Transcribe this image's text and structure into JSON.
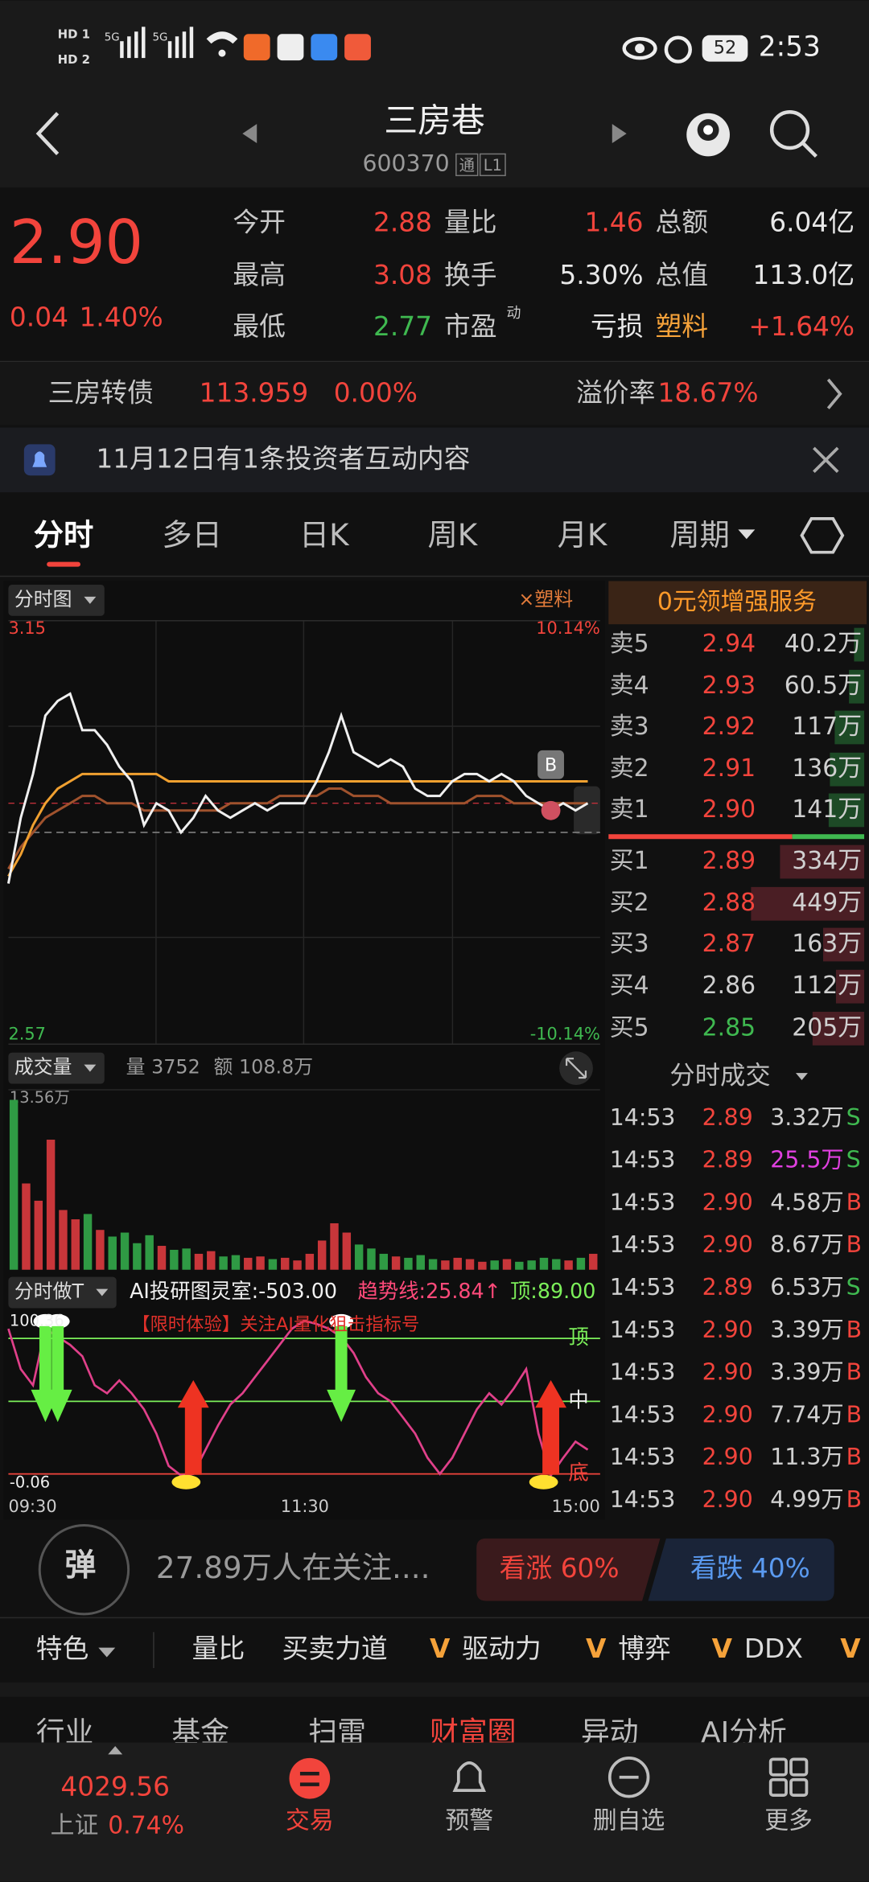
{
  "status_bar": {
    "network": [
      "HD 1",
      "HD 2",
      "5G",
      "5G"
    ],
    "battery": "52",
    "time": "2:53"
  },
  "header": {
    "title": "三房巷",
    "code": "600370",
    "badges": [
      "通",
      "L1"
    ]
  },
  "quote": {
    "price": "2.90",
    "change": "0.04",
    "change_pct": "1.40%",
    "rows": [
      [
        {
          "label": "今开",
          "value": "2.88",
          "color": "#f2443c"
        },
        {
          "label": "量比",
          "value": "1.46",
          "color": "#f2443c"
        },
        {
          "label": "总额",
          "value": "6.04亿",
          "color": "#e8e8e8"
        }
      ],
      [
        {
          "label": "最高",
          "value": "3.08",
          "color": "#f2443c"
        },
        {
          "label": "换手",
          "value": "5.30%",
          "color": "#e8e8e8"
        },
        {
          "label": "总值",
          "value": "113.0亿",
          "color": "#e8e8e8"
        }
      ],
      [
        {
          "label": "最低",
          "value": "2.77",
          "color": "#3fb950"
        },
        {
          "label": "市盈",
          "label_sup": "动",
          "value": "亏损",
          "color": "#e8e8e8"
        },
        {
          "label": "塑料",
          "label_color": "#f5a23a",
          "value": "+1.64%",
          "color": "#f2443c"
        }
      ]
    ]
  },
  "bond": {
    "name": "三房转债",
    "price": "113.959",
    "change": "0.00%",
    "premium_label": "溢价率",
    "premium": "18.67%"
  },
  "notice": {
    "text": "11月12日有1条投资者互动内容"
  },
  "tabs": {
    "items": [
      "分时",
      "多日",
      "日K",
      "周K",
      "月K",
      "周期"
    ],
    "active": 0
  },
  "intraday": {
    "title": "分时图",
    "compare": "×塑料",
    "ylim": [
      2.57,
      3.15
    ],
    "pct_top": "10.14%",
    "pct_bottom": "-10.14%",
    "prev_close": 2.86,
    "price_color": "#f0f0f0",
    "average_color": "#f0a030",
    "sector_color": "#a0522d",
    "trade_marker": {
      "label": "B",
      "index": 44
    },
    "price": [
      2.79,
      2.88,
      2.94,
      3.02,
      3.04,
      3.05,
      3.0,
      3.0,
      2.98,
      2.95,
      2.93,
      2.87,
      2.9,
      2.89,
      2.86,
      2.88,
      2.91,
      2.89,
      2.88,
      2.89,
      2.9,
      2.89,
      2.9,
      2.9,
      2.9,
      2.93,
      2.97,
      3.02,
      2.97,
      2.96,
      2.95,
      2.96,
      2.95,
      2.92,
      2.91,
      2.91,
      2.93,
      2.94,
      2.94,
      2.93,
      2.94,
      2.93,
      2.91,
      2.9,
      2.89,
      2.9,
      2.89,
      2.9
    ],
    "average": [
      2.8,
      2.83,
      2.87,
      2.9,
      2.92,
      2.93,
      2.94,
      2.94,
      2.94,
      2.94,
      2.94,
      2.94,
      2.94,
      2.93,
      2.93,
      2.93,
      2.93,
      2.93,
      2.93,
      2.93,
      2.93,
      2.93,
      2.93,
      2.93,
      2.93,
      2.93,
      2.93,
      2.93,
      2.93,
      2.93,
      2.93,
      2.93,
      2.93,
      2.93,
      2.93,
      2.93,
      2.93,
      2.93,
      2.93,
      2.93,
      2.93,
      2.93,
      2.93,
      2.93,
      2.93,
      2.93,
      2.93,
      2.93
    ],
    "sector": [
      2.81,
      2.84,
      2.86,
      2.88,
      2.89,
      2.9,
      2.91,
      2.91,
      2.9,
      2.9,
      2.9,
      2.89,
      2.89,
      2.89,
      2.89,
      2.89,
      2.89,
      2.89,
      2.9,
      2.9,
      2.9,
      2.9,
      2.91,
      2.91,
      2.91,
      2.91,
      2.92,
      2.92,
      2.91,
      2.91,
      2.91,
      2.9,
      2.9,
      2.9,
      2.9,
      2.9,
      2.9,
      2.9,
      2.91,
      2.91,
      2.91,
      2.9,
      2.9,
      2.9,
      2.9,
      2.9,
      2.9,
      2.9
    ]
  },
  "volume": {
    "title": "成交量",
    "volume": "量 3752",
    "amount": "额 108.8万",
    "ylim": [
      0,
      13.56
    ],
    "ytick": {
      "value": 13.56,
      "label": "13.56万"
    },
    "values": [
      12.8,
      6.5,
      5.2,
      9.8,
      4.5,
      3.8,
      4.2,
      3.0,
      2.5,
      2.8,
      2.0,
      2.6,
      1.8,
      1.5,
      1.6,
      1.2,
      1.4,
      1.0,
      1.1,
      0.9,
      1.0,
      0.8,
      0.9,
      0.7,
      1.2,
      2.2,
      3.5,
      2.8,
      1.9,
      1.6,
      1.2,
      1.0,
      0.9,
      1.1,
      0.8,
      0.7,
      0.9,
      0.8,
      0.6,
      0.7,
      0.8,
      0.6,
      0.7,
      0.9,
      0.8,
      0.7,
      0.9,
      1.2
    ]
  },
  "indicator": {
    "title": "分时做T",
    "ai": "AI投研图灵室:-503.00",
    "trend": "趋势线:25.84↑",
    "top": "顶:89.00",
    "promo": "【限时体验】关注AI量化狙击指标号",
    "ylim": [
      -0.06,
      100.36
    ],
    "levels": [
      {
        "label": "顶",
        "value": 89,
        "color": "#7cf05a"
      },
      {
        "label": "中",
        "value": 50,
        "color": "#7cf05a"
      },
      {
        "label": "底",
        "value": 5,
        "color": "#f2443c"
      }
    ],
    "values": [
      95,
      70,
      60,
      95,
      90,
      85,
      78,
      60,
      55,
      63,
      55,
      45,
      30,
      10,
      4,
      5,
      20,
      35,
      48,
      55,
      65,
      75,
      85,
      95,
      100,
      98,
      95,
      90,
      80,
      65,
      55,
      50,
      40,
      30,
      15,
      5,
      15,
      30,
      45,
      55,
      48,
      58,
      70,
      30,
      4,
      15,
      25,
      20
    ],
    "sell_signals": [
      3,
      4,
      27
    ],
    "buy_signals": [
      15,
      44
    ],
    "time_axis": [
      "09:30",
      "11:30",
      "15:00"
    ]
  },
  "order_book": {
    "promo": "0元领增强服务",
    "asks": [
      {
        "label": "卖5",
        "price": "2.94",
        "volume": 40.2,
        "volume_label": "40.2万"
      },
      {
        "label": "卖4",
        "price": "2.93",
        "volume": 60.5,
        "volume_label": "60.5万"
      },
      {
        "label": "卖3",
        "price": "2.92",
        "volume": 117,
        "volume_label": "117万"
      },
      {
        "label": "卖2",
        "price": "2.91",
        "volume": 136,
        "volume_label": "136万"
      },
      {
        "label": "卖1",
        "price": "2.90",
        "volume": 141,
        "volume_label": "141万"
      }
    ],
    "bids": [
      {
        "label": "买1",
        "price": "2.89",
        "volume": 334,
        "volume_label": "334万"
      },
      {
        "label": "买2",
        "price": "2.88",
        "volume": 449,
        "volume_label": "449万"
      },
      {
        "label": "买3",
        "price": "2.87",
        "volume": 163,
        "volume_label": "163万"
      },
      {
        "label": "买4",
        "price": "2.86",
        "volume": 112,
        "volume_label": "112万"
      },
      {
        "label": "买5",
        "price": "2.85",
        "volume": 205,
        "volume_label": "205万"
      }
    ]
  },
  "trades": {
    "title": "分时成交",
    "rows": [
      {
        "time": "14:53",
        "price": "2.89",
        "volume": "3.32万",
        "side": "S"
      },
      {
        "time": "14:53",
        "price": "2.89",
        "volume": "25.5万",
        "side": "S",
        "large": true
      },
      {
        "time": "14:53",
        "price": "2.90",
        "volume": "4.58万",
        "side": "B"
      },
      {
        "time": "14:53",
        "price": "2.90",
        "volume": "8.67万",
        "side": "B"
      },
      {
        "time": "14:53",
        "price": "2.89",
        "volume": "6.53万",
        "side": "S"
      },
      {
        "time": "14:53",
        "price": "2.90",
        "volume": "3.39万",
        "side": "B"
      },
      {
        "time": "14:53",
        "price": "2.90",
        "volume": "3.39万",
        "side": "B"
      },
      {
        "time": "14:53",
        "price": "2.90",
        "volume": "7.74万",
        "side": "B"
      },
      {
        "time": "14:53",
        "price": "2.90",
        "volume": "11.3万",
        "side": "B"
      },
      {
        "time": "14:53",
        "price": "2.90",
        "volume": "4.99万",
        "side": "B"
      }
    ]
  },
  "social": {
    "button": "弹",
    "followers": "27.89万人在关注....",
    "bullish": "看涨 60%",
    "bearish": "看跌 40%"
  },
  "features": {
    "menu": "特色",
    "items": [
      {
        "label": "量比"
      },
      {
        "label": "买卖力道"
      },
      {
        "vip": "V",
        "label": "驱动力"
      },
      {
        "vip": "V",
        "label": "博弈"
      },
      {
        "vip": "V",
        "label": "DDX"
      },
      {
        "vip": "V"
      }
    ]
  },
  "sub_tabs": {
    "items": [
      "行业",
      "基金",
      "扫雷",
      "财富圈",
      "异动",
      "AI分析"
    ],
    "active": 3
  },
  "bottom_nav": {
    "index_value": "4029.56",
    "index_name": "上证",
    "index_change": "0.74%",
    "items": [
      "交易",
      "预警",
      "删自选",
      "更多"
    ],
    "active": 0
  }
}
